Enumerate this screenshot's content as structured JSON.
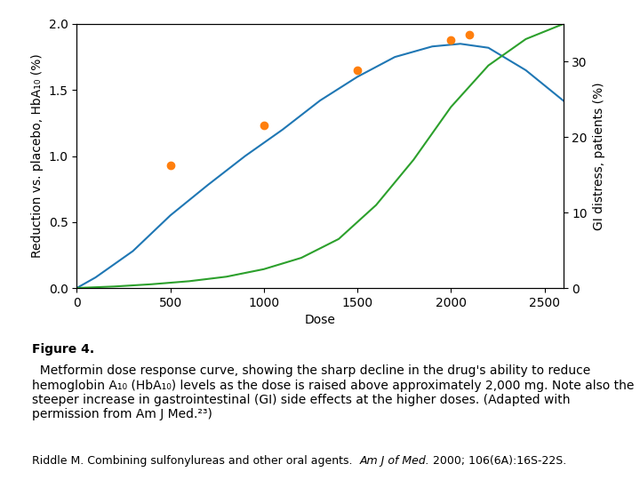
{
  "chart_data": {
    "type": "line",
    "xlabel": "Dose",
    "ylabel": "Reduction vs. placebo, HbA₁₀ (%)",
    "y2label": "GI distress, patients (%)",
    "xlim": [
      0,
      2600
    ],
    "xticks": [
      0,
      500,
      1000,
      1500,
      2000,
      2500
    ],
    "ylim": [
      0,
      2.0
    ],
    "yticks": [
      0.0,
      0.5,
      1.0,
      1.5,
      2.0
    ],
    "y2lim": [
      0,
      35
    ],
    "y2ticks": [
      0,
      10,
      20,
      30
    ],
    "series": [
      {
        "type": "line",
        "x": [
          0,
          100,
          300,
          500,
          700,
          900,
          1100,
          1300,
          1500,
          1700,
          1900,
          2050,
          2200,
          2400,
          2600
        ],
        "values": [
          0,
          0.08,
          0.28,
          0.55,
          0.78,
          1.0,
          1.2,
          1.42,
          1.6,
          1.75,
          1.83,
          1.85,
          1.82,
          1.65,
          1.42
        ]
      },
      {
        "type": "scatter",
        "x": [
          500,
          1000,
          1500,
          2000,
          2100
        ],
        "values": [
          0.93,
          1.23,
          1.65,
          1.88,
          1.92
        ]
      },
      {
        "type": "line",
        "axis": "y2",
        "x": [
          0,
          200,
          400,
          600,
          800,
          1000,
          1200,
          1400,
          1600,
          1800,
          2000,
          2200,
          2400,
          2600
        ],
        "values": [
          0,
          0.2,
          0.5,
          0.9,
          1.5,
          2.5,
          4.0,
          6.5,
          11.0,
          17.0,
          24.0,
          29.5,
          33.0,
          35.0
        ]
      }
    ],
    "caption_label": "Figure 4.",
    "caption": "  Metformin dose response curve, showing the sharp decline in the drug's ability to reduce hemoglobin A₁₀ (HbA₁₀) levels as the dose is raised above approximately 2,000 mg. Note also the steeper increase in gastrointestinal (GI) side effects at the higher doses. (Adapted with permission from Am J Med.²³)",
    "reference": [
      "Riddle M. Combining sulfonylureas and other oral agents.  ",
      "Am J of Med.",
      " 2000; 106(6A):16S-22S."
    ]
  }
}
